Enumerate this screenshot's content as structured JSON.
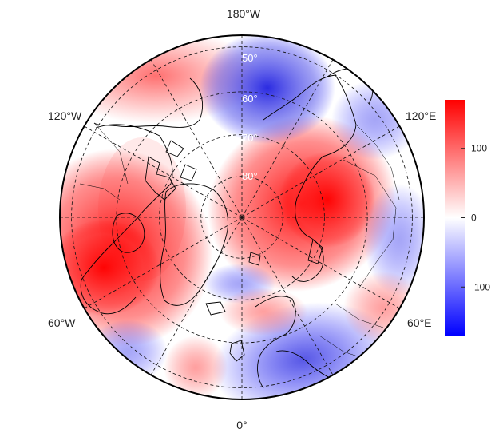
{
  "map": {
    "projection": "north-polar-stereographic",
    "lon_labels": [
      {
        "lon": 180,
        "text": "180°W"
      },
      {
        "lon": -120,
        "text": "120°W"
      },
      {
        "lon": 120,
        "text": "120°E"
      },
      {
        "lon": -60,
        "text": "60°W"
      },
      {
        "lon": 60,
        "text": "60°E"
      },
      {
        "lon": 0,
        "text": "0°"
      }
    ],
    "lat_labels": [
      {
        "lat": 50,
        "text": "50°"
      },
      {
        "lat": 60,
        "text": "60°"
      },
      {
        "lat": 70,
        "text": "70°"
      },
      {
        "lat": 80,
        "text": "80°"
      }
    ],
    "lat_circles": [
      50,
      60,
      70,
      80
    ],
    "meridians": [
      0,
      30,
      60,
      90,
      120,
      150,
      180,
      210,
      240,
      270,
      300,
      330
    ]
  },
  "colorbar": {
    "min": -170,
    "max": 170,
    "ticks": [
      {
        "value": 100,
        "text": "100"
      },
      {
        "value": 0,
        "text": "0"
      },
      {
        "value": -100,
        "text": "-100"
      }
    ],
    "colors": {
      "low": "#0000ff",
      "mid": "#ffffff",
      "high": "#ff0000"
    }
  },
  "anomaly_field": [
    {
      "lon": 80,
      "lat": 75,
      "value": 160
    },
    {
      "lon": -50,
      "lat": 55,
      "value": 150
    },
    {
      "lon": -140,
      "lat": 45,
      "value": 90
    },
    {
      "lon": 175,
      "lat": 55,
      "value": -130
    },
    {
      "lon": 25,
      "lat": 48,
      "value": -100
    },
    {
      "lon": 125,
      "lat": 55,
      "value": -60
    },
    {
      "lon": -5,
      "lat": 75,
      "value": -30
    }
  ]
}
